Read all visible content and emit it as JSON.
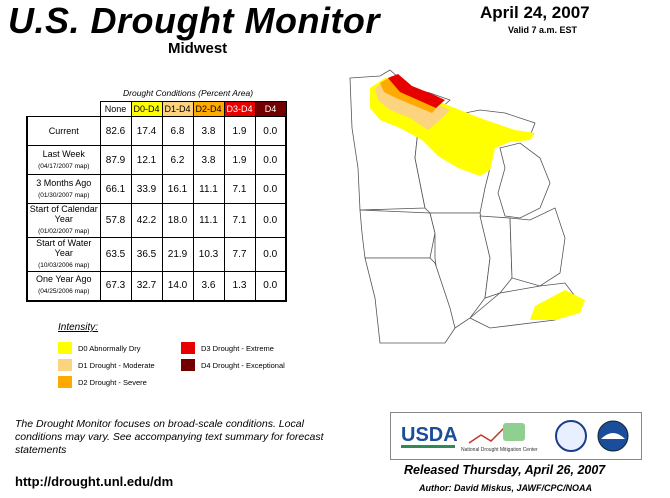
{
  "header": {
    "title": "U.S. Drought Monitor",
    "region": "Midwest",
    "date": "April 24, 2007",
    "valid": "Valid 7 a.m. EST"
  },
  "table": {
    "caption": "Drought Conditions (Percent Area)",
    "columns": [
      "None",
      "D0-D4",
      "D1-D4",
      "D2-D4",
      "D3-D4",
      "D4"
    ],
    "column_colors": [
      "#ffffff",
      "#ffff00",
      "#fcd37f",
      "#ffaa00",
      "#e60000",
      "#730000"
    ],
    "column_text_colors": [
      "#000000",
      "#000000",
      "#000000",
      "#000000",
      "#ffffff",
      "#ffffff"
    ],
    "rows": [
      {
        "label": "Current",
        "sub": "",
        "values": [
          "82.6",
          "17.4",
          "6.8",
          "3.8",
          "1.9",
          "0.0"
        ]
      },
      {
        "label": "Last Week",
        "sub": "(04/17/2007 map)",
        "values": [
          "87.9",
          "12.1",
          "6.2",
          "3.8",
          "1.9",
          "0.0"
        ]
      },
      {
        "label": "3 Months Ago",
        "sub": "(01/30/2007 map)",
        "values": [
          "66.1",
          "33.9",
          "16.1",
          "11.1",
          "7.1",
          "0.0"
        ]
      },
      {
        "label": "Start of Calendar Year",
        "sub": "(01/02/2007 map)",
        "values": [
          "57.8",
          "42.2",
          "18.0",
          "11.1",
          "7.1",
          "0.0"
        ]
      },
      {
        "label": "Start of Water Year",
        "sub": "(10/03/2006 map)",
        "values": [
          "63.5",
          "36.5",
          "21.9",
          "10.3",
          "7.7",
          "0.0"
        ]
      },
      {
        "label": "One Year Ago",
        "sub": "(04/25/2006 map)",
        "values": [
          "67.3",
          "32.7",
          "14.0",
          "3.6",
          "1.3",
          "0.0"
        ]
      }
    ]
  },
  "legend": {
    "title": "Intensity:",
    "items": [
      {
        "label": "D0 Abnormally Dry",
        "color": "#ffff00"
      },
      {
        "label": "D1 Drought - Moderate",
        "color": "#fcd37f"
      },
      {
        "label": "D2 Drought - Severe",
        "color": "#ffaa00"
      },
      {
        "label": "D3 Drought - Extreme",
        "color": "#e60000"
      },
      {
        "label": "D4 Drought - Exceptional",
        "color": "#730000"
      }
    ]
  },
  "footer": {
    "note": "The Drought Monitor focuses on broad-scale conditions. Local conditions may vary. See accompanying text summary for forecast statements",
    "url": "http://drought.unl.edu/dm",
    "released": "Released Thursday, April 26, 2007",
    "author": "Author: David Miskus, JAWF/CPC/NOAA"
  },
  "logos": {
    "usda": "USDA",
    "ndmc": "National Drought Mitigation Center"
  }
}
